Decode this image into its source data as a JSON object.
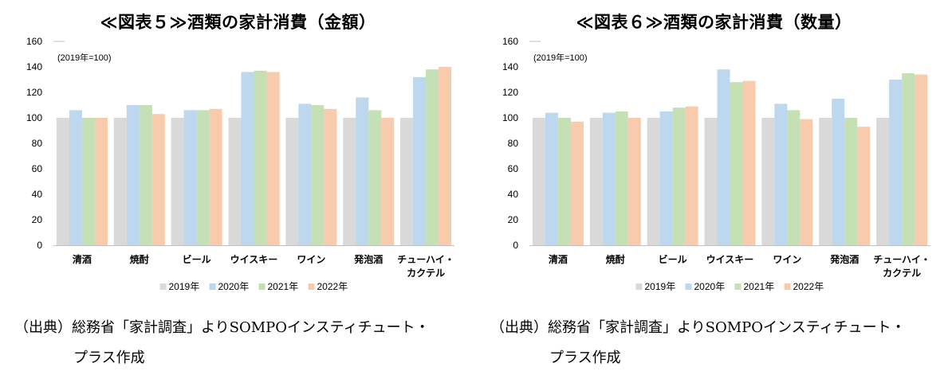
{
  "colors": {
    "s2019": "#d9d9d9",
    "s2020": "#bdd7ee",
    "s2021": "#c5e0b4",
    "s2022": "#f8cbad",
    "axis": "#bfbfbf"
  },
  "chart_data": [
    {
      "type": "bar",
      "title": "≪図表５≫酒類の家計消費（金額）",
      "note": "(2019年=100)",
      "categories": [
        "清酒",
        "焼酎",
        "ビール",
        "ウイスキー",
        "ワイン",
        "発泡酒",
        "チューハイ・\nカクテル"
      ],
      "series": [
        {
          "name": "2019年",
          "color": "#d9d9d9",
          "values": [
            100,
            100,
            100,
            100,
            100,
            100,
            100
          ]
        },
        {
          "name": "2020年",
          "color": "#bdd7ee",
          "values": [
            106,
            110,
            106,
            136,
            111,
            116,
            132
          ]
        },
        {
          "name": "2021年",
          "color": "#c5e0b4",
          "values": [
            100,
            110,
            106,
            137,
            110,
            106,
            138
          ]
        },
        {
          "name": "2022年",
          "color": "#f8cbad",
          "values": [
            100,
            103,
            107,
            136,
            107,
            100,
            140
          ]
        }
      ],
      "ylim": [
        0,
        160
      ],
      "yticks": [
        0,
        20,
        40,
        60,
        80,
        100,
        120,
        140,
        160
      ],
      "legend_position": "bottom"
    },
    {
      "type": "bar",
      "title": "≪図表６≫酒類の家計消費（数量）",
      "note": "(2019年=100)",
      "categories": [
        "清酒",
        "焼酎",
        "ビール",
        "ウイスキー",
        "ワイン",
        "発泡酒",
        "チューハイ・\nカクテル"
      ],
      "series": [
        {
          "name": "2019年",
          "color": "#d9d9d9",
          "values": [
            100,
            100,
            100,
            100,
            100,
            100,
            100
          ]
        },
        {
          "name": "2020年",
          "color": "#bdd7ee",
          "values": [
            104,
            104,
            105,
            138,
            111,
            115,
            130
          ]
        },
        {
          "name": "2021年",
          "color": "#c5e0b4",
          "values": [
            100,
            105,
            108,
            128,
            106,
            100,
            135
          ]
        },
        {
          "name": "2022年",
          "color": "#f8cbad",
          "values": [
            97,
            100,
            109,
            129,
            99,
            93,
            134
          ]
        }
      ],
      "ylim": [
        0,
        160
      ],
      "yticks": [
        0,
        20,
        40,
        60,
        80,
        100,
        120,
        140,
        160
      ],
      "legend_position": "bottom"
    }
  ],
  "source": {
    "line1": "（出典）総務省「家計調査」よりSOMPOインスティチュート・",
    "line2": "プラス作成"
  }
}
